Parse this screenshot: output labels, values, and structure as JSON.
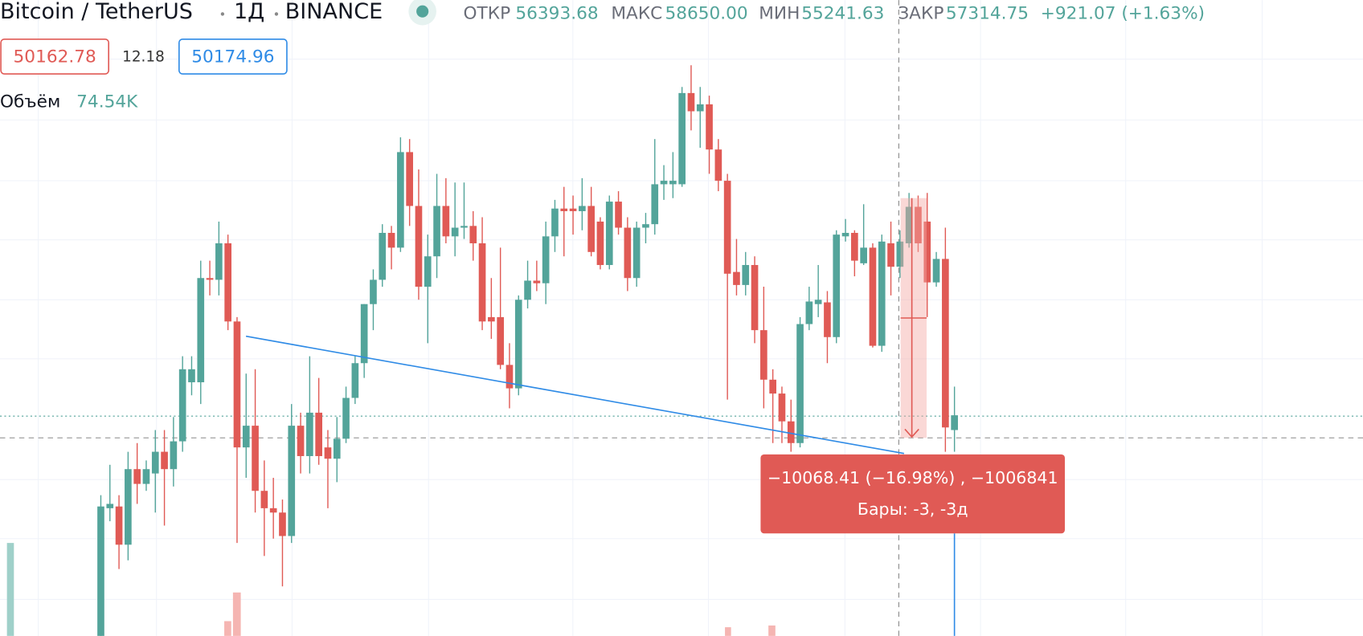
{
  "chart_data": {
    "type": "candlestick",
    "open": [
      43243,
      47271,
      47326,
      46120,
      48504,
      48038,
      48367,
      49052,
      48504,
      49381,
      51244,
      51244,
      54532,
      54477,
      55628,
      53162,
      49189,
      49874,
      47819,
      47271,
      47134,
      46394,
      49874,
      48915,
      50285,
      49189,
      48833,
      49463,
      50751,
      51847,
      53710,
      54477,
      55957,
      55491,
      58505,
      56806,
      54258,
      55217,
      56806,
      55847,
      56121,
      56176,
      55628,
      53299,
      53299,
      51792,
      51052,
      53847,
      54450,
      54368,
      55847,
      56724,
      56724,
      56642,
      56806,
      56313,
      54943,
      56943,
      56121,
      54532,
      56121,
      56231,
      57491,
      57491,
      57491,
      60368,
      59793,
      60012,
      58587,
      57601,
      54724,
      54313,
      54943,
      52888,
      51326,
      50888,
      50011,
      49326,
      53080,
      53710,
      53765,
      52669,
      55847,
      55957,
      54998,
      55491,
      52395,
      55628,
      54888,
      55628,
      56779,
      56313,
      54395,
      55135,
      49737
    ],
    "high": [
      47682,
      48641,
      47682,
      49052,
      49326,
      48778,
      49737,
      49737,
      50148,
      52066,
      52066,
      55080,
      55080,
      56313,
      55902,
      53299,
      51518,
      51655,
      48778,
      48230,
      47545,
      50559,
      50285,
      52066,
      51381,
      49737,
      50148,
      51107,
      52066,
      53710,
      54806,
      56231,
      56176,
      58971,
      58916,
      57957,
      55902,
      57820,
      57683,
      57546,
      57546,
      56642,
      56450,
      54532,
      55491,
      52477,
      53984,
      55080,
      55080,
      56313,
      56998,
      57409,
      57135,
      57683,
      57409,
      56450,
      57135,
      57272,
      56450,
      56313,
      56587,
      58916,
      58094,
      58505,
      60560,
      61245,
      60560,
      60286,
      58916,
      57820,
      55765,
      55354,
      55217,
      54258,
      51655,
      51107,
      50696,
      53299,
      54258,
      54943,
      54121,
      56039,
      56395,
      56039,
      56861,
      55628,
      55902,
      56313,
      56039,
      57217,
      57135,
      57217,
      55354,
      56121,
      51107
    ],
    "low": [
      43243,
      46860,
      45353,
      45627,
      47408,
      47819,
      47134,
      46723,
      47956,
      49052,
      50833,
      50559,
      53984,
      53984,
      52888,
      46175,
      48230,
      47134,
      45764,
      46312,
      44805,
      46175,
      48367,
      48367,
      48641,
      47271,
      48093,
      49326,
      50559,
      51381,
      52888,
      54258,
      54806,
      55354,
      56176,
      53847,
      52477,
      54532,
      55628,
      55217,
      55765,
      55080,
      52888,
      52614,
      51655,
      50422,
      50833,
      53573,
      54121,
      53710,
      55354,
      55217,
      55902,
      56039,
      55217,
      54806,
      54806,
      55902,
      54121,
      54258,
      55628,
      55902,
      56998,
      57053,
      57409,
      59190,
      58642,
      57820,
      57272,
      50696,
      53984,
      53984,
      52477,
      50422,
      49326,
      49326,
      49052,
      49189,
      52888,
      53299,
      51847,
      52477,
      55683,
      54587,
      54943,
      52340,
      52203,
      53984,
      54532,
      55491,
      55354,
      53299,
      54258,
      49052,
      49052
    ],
    "close": [
      47326,
      47408,
      46120,
      48504,
      48038,
      48504,
      49052,
      48504,
      49381,
      51655,
      51655,
      54532,
      54477,
      55628,
      53162,
      49189,
      49874,
      47819,
      47271,
      47134,
      46394,
      49874,
      48915,
      50285,
      48915,
      48833,
      49463,
      50751,
      51847,
      53710,
      54477,
      55957,
      55491,
      58505,
      56806,
      54258,
      55217,
      56806,
      55847,
      56121,
      56176,
      55628,
      53162,
      53162,
      51792,
      51052,
      53847,
      54450,
      54368,
      55847,
      56724,
      56642,
      56642,
      56806,
      55354,
      54943,
      56943,
      56121,
      54532,
      56121,
      56231,
      57491,
      57601,
      57601,
      60368,
      59793,
      60012,
      58587,
      57601,
      54669,
      54313,
      54943,
      52888,
      51326,
      50888,
      50011,
      49326,
      53080,
      53792,
      53847,
      52669,
      55902,
      55957,
      55080,
      55491,
      52395,
      55683,
      54888,
      55683,
      56779,
      55628,
      54395,
      55135,
      49819,
      50203
    ],
    "up_color": "#53a49a",
    "down_color": "#e05a55",
    "ylim": [
      43243,
      63300
    ]
  },
  "header": {
    "symbol": "Bitcoin / TetherUS",
    "interval": "1Д",
    "exchange": "BINANCE",
    "open_label": "ОТКР",
    "open": "56393.68",
    "high_label": "МАКС",
    "high": "58650.00",
    "low_label": "МИН",
    "low": "55241.63",
    "close_label": "ЗАКР",
    "close": "57314.75",
    "change": "+921.07 (+1.63%)"
  },
  "quote": {
    "bid": "50162.78",
    "spread": "12.18",
    "ask": "50174.96"
  },
  "volume": {
    "label": "Объём",
    "value": "74.54K"
  },
  "measure": {
    "line1": "−10068.41 (−16.98%) , −1006841",
    "line2": "Бары: -3, -3д"
  }
}
